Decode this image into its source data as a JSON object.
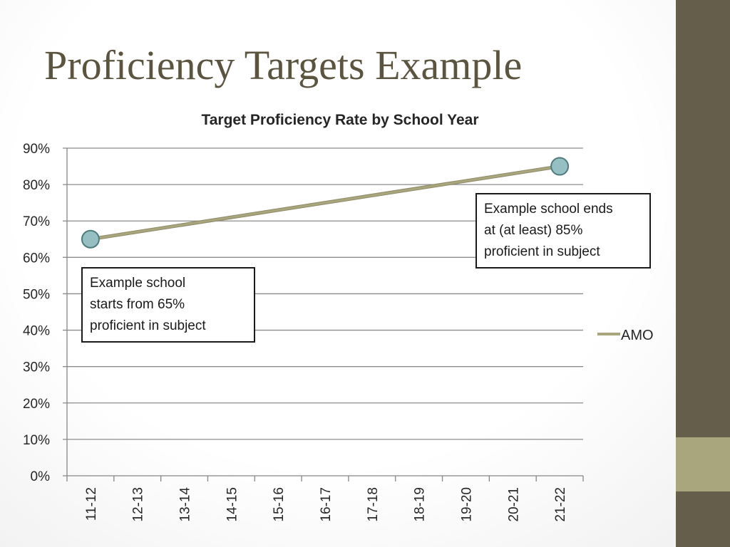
{
  "slide": {
    "title": "Proficiency Targets Example"
  },
  "colors": {
    "sidebar": "#655e4a",
    "sidebar_accent": "#a9a57d",
    "line": "#a9a57d",
    "marker_fill": "#95bfc2",
    "marker_stroke": "#4f7a7e"
  },
  "chart_data": {
    "type": "line",
    "title": "Target Proficiency Rate by School Year",
    "categories": [
      "11-12",
      "12-13",
      "13-14",
      "14-15",
      "15-16",
      "16-17",
      "17-18",
      "18-19",
      "19-20",
      "20-21",
      "21-22"
    ],
    "series": [
      {
        "name": "AMO",
        "values": [
          65,
          null,
          null,
          null,
          null,
          null,
          null,
          null,
          null,
          null,
          85
        ],
        "connect": true
      }
    ],
    "yticks": [
      "0%",
      "10%",
      "20%",
      "30%",
      "40%",
      "50%",
      "60%",
      "70%",
      "80%",
      "90%"
    ],
    "ylim": [
      0,
      90
    ],
    "grid": true,
    "legend": "right",
    "annotations": [
      {
        "text": "Example school\nstarts from 65%\nproficient in subject"
      },
      {
        "text": "Example school ends\nat (at least) 85%\nproficient in subject"
      }
    ]
  }
}
